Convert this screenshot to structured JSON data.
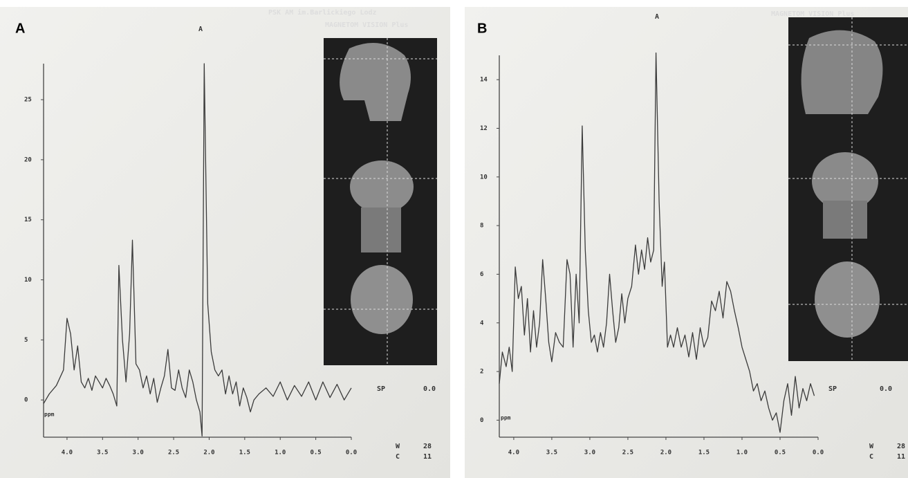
{
  "chart_data": [
    {
      "type": "line",
      "panel_label": "A",
      "title": "A",
      "annotations": [
        "PSK AM im.Barlickiego Lodz",
        "MAGNETOM VISION Plus",
        "SP",
        "0.0",
        "W",
        "28",
        "C",
        "11"
      ],
      "x_unit_label": "ppm",
      "xlim": [
        4.33,
        0
      ],
      "ylim": [
        -3.1,
        28
      ],
      "xticks": [
        {
          "value": 4,
          "label": "4.0"
        },
        {
          "value": 3.5,
          "label": "3.5"
        },
        {
          "value": 3,
          "label": "3.0"
        },
        {
          "value": 2.5,
          "label": "2.5"
        },
        {
          "value": 2,
          "label": "2.0"
        },
        {
          "value": 1.5,
          "label": "1.5"
        },
        {
          "value": 1,
          "label": "1.0"
        },
        {
          "value": 0.5,
          "label": "0.5"
        },
        {
          "value": 0,
          "label": "0.0"
        }
      ],
      "yticks": [
        0,
        5,
        10,
        15,
        20,
        25
      ],
      "x": [
        4.33,
        4.25,
        4.15,
        4.05,
        4.0,
        3.95,
        3.9,
        3.85,
        3.8,
        3.75,
        3.7,
        3.65,
        3.6,
        3.55,
        3.5,
        3.45,
        3.4,
        3.35,
        3.3,
        3.27,
        3.22,
        3.17,
        3.12,
        3.08,
        3.03,
        2.98,
        2.93,
        2.88,
        2.83,
        2.78,
        2.73,
        2.68,
        2.63,
        2.58,
        2.53,
        2.48,
        2.43,
        2.38,
        2.33,
        2.28,
        2.23,
        2.18,
        2.13,
        2.1,
        2.07,
        2.02,
        1.97,
        1.92,
        1.87,
        1.82,
        1.77,
        1.72,
        1.67,
        1.62,
        1.57,
        1.52,
        1.47,
        1.42,
        1.37,
        1.3,
        1.2,
        1.1,
        1.0,
        0.9,
        0.8,
        0.7,
        0.6,
        0.5,
        0.4,
        0.3,
        0.2,
        0.1,
        0.0
      ],
      "series": [
        {
          "color": "#3a3a3a",
          "values": [
            -0.3,
            0.5,
            1.2,
            2.5,
            6.8,
            5.5,
            2.5,
            4.5,
            1.5,
            1.0,
            1.8,
            0.8,
            2.0,
            1.5,
            1.0,
            1.8,
            1.2,
            0.5,
            -0.5,
            11.2,
            5.0,
            1.5,
            5.5,
            13.3,
            3.0,
            2.5,
            1.0,
            2.0,
            0.5,
            1.8,
            -0.2,
            1.0,
            2.0,
            4.2,
            1.0,
            0.8,
            2.5,
            1.0,
            0.2,
            2.5,
            1.5,
            0.0,
            -1.0,
            -3.0,
            28.0,
            8.0,
            4.0,
            2.5,
            2.0,
            2.5,
            0.5,
            2.0,
            0.5,
            1.5,
            -0.5,
            1.0,
            0.2,
            -1.0,
            0.0,
            0.5,
            1.0,
            0.3,
            1.5,
            0.0,
            1.2,
            0.3,
            1.5,
            0.0,
            1.5,
            0.2,
            1.3,
            0.0,
            1.0
          ]
        }
      ]
    },
    {
      "type": "line",
      "panel_label": "B",
      "title": "A",
      "annotations": [
        "MAGNETOM VISION Plus",
        "SP",
        "0.0",
        "W",
        "28",
        "C",
        "11"
      ],
      "x_unit_label": "ppm",
      "xlim": [
        4.19,
        0
      ],
      "ylim": [
        -0.7,
        15
      ],
      "xticks": [
        {
          "value": 4,
          "label": "4.0"
        },
        {
          "value": 3.5,
          "label": "3.5"
        },
        {
          "value": 3,
          "label": "3.0"
        },
        {
          "value": 2.5,
          "label": "2.5"
        },
        {
          "value": 2,
          "label": "2.0"
        },
        {
          "value": 1.5,
          "label": "1.5"
        },
        {
          "value": 1,
          "label": "1.0"
        },
        {
          "value": 0.5,
          "label": "0.5"
        },
        {
          "value": 0,
          "label": "0.0"
        }
      ],
      "yticks": [
        0,
        2,
        4,
        6,
        8,
        10,
        12,
        14
      ],
      "x": [
        4.19,
        4.15,
        4.1,
        4.06,
        4.02,
        3.98,
        3.94,
        3.9,
        3.86,
        3.82,
        3.78,
        3.74,
        3.7,
        3.66,
        3.62,
        3.58,
        3.54,
        3.5,
        3.45,
        3.4,
        3.35,
        3.3,
        3.26,
        3.22,
        3.18,
        3.14,
        3.1,
        3.06,
        3.02,
        2.98,
        2.94,
        2.9,
        2.86,
        2.82,
        2.78,
        2.74,
        2.7,
        2.66,
        2.62,
        2.58,
        2.54,
        2.5,
        2.45,
        2.4,
        2.36,
        2.32,
        2.28,
        2.24,
        2.2,
        2.16,
        2.13,
        2.09,
        2.05,
        2.02,
        1.98,
        1.94,
        1.9,
        1.85,
        1.8,
        1.75,
        1.7,
        1.65,
        1.6,
        1.55,
        1.5,
        1.45,
        1.4,
        1.35,
        1.3,
        1.25,
        1.2,
        1.15,
        1.1,
        1.05,
        1.0,
        0.95,
        0.9,
        0.85,
        0.8,
        0.75,
        0.7,
        0.65,
        0.6,
        0.55,
        0.5,
        0.45,
        0.4,
        0.35,
        0.3,
        0.25,
        0.2,
        0.15,
        0.1,
        0.05
      ],
      "series": [
        {
          "color": "#3a3a3a",
          "values": [
            1.5,
            2.8,
            2.2,
            3.0,
            2.0,
            6.3,
            5.0,
            5.5,
            3.5,
            5.0,
            2.8,
            4.5,
            3.0,
            4.0,
            6.6,
            5.0,
            3.2,
            2.4,
            3.6,
            3.2,
            3.0,
            6.6,
            6.0,
            3.0,
            6.0,
            4.0,
            12.1,
            7.0,
            4.5,
            3.2,
            3.5,
            2.8,
            3.6,
            3.0,
            4.0,
            6.0,
            4.5,
            3.2,
            3.8,
            5.2,
            4.0,
            5.0,
            5.5,
            7.2,
            6.0,
            7.0,
            6.2,
            7.5,
            6.5,
            7.0,
            15.1,
            9.0,
            5.5,
            6.5,
            3.0,
            3.5,
            3.0,
            3.8,
            3.0,
            3.5,
            2.6,
            3.6,
            2.5,
            3.8,
            3.0,
            3.4,
            4.9,
            4.5,
            5.3,
            4.2,
            5.7,
            5.3,
            4.5,
            3.8,
            3.0,
            2.5,
            2.0,
            1.2,
            1.5,
            0.8,
            1.2,
            0.5,
            0.0,
            0.3,
            -0.5,
            0.8,
            1.5,
            0.2,
            1.8,
            0.5,
            1.3,
            0.8,
            1.5,
            1.0
          ]
        }
      ]
    }
  ]
}
